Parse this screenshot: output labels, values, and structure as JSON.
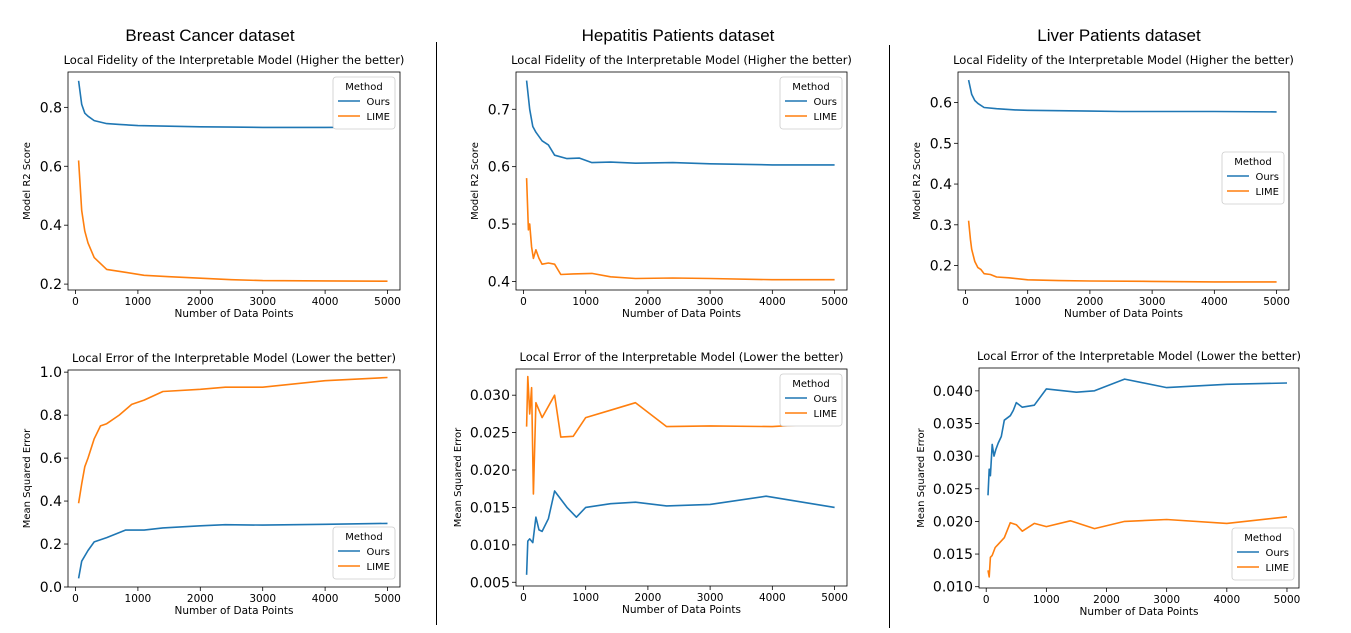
{
  "columns": [
    {
      "title": "Breast Cancer dataset",
      "charts": [
        {
          "type": "line",
          "title": "Local Fidelity of the Interpretable Model  (Higher the better)",
          "xlabel": "Number of Data Points",
          "ylabel": "Model R2 Score",
          "xlim": [
            -120,
            5200
          ],
          "ylim": [
            0.18,
            0.92
          ],
          "xticks": [
            0,
            1000,
            2000,
            3000,
            4000,
            5000
          ],
          "yticks": [
            0.2,
            0.4,
            0.6,
            0.8
          ],
          "ytick_decimals": 1,
          "legend": "top-right",
          "legend_title": "Method",
          "series": [
            {
              "name": "Ours",
              "color": "#1f77b4",
              "x": [
                50,
                100,
                150,
                200,
                300,
                500,
                700,
                1000,
                1500,
                2000,
                2500,
                3000,
                4000,
                5000
              ],
              "y": [
                0.89,
                0.81,
                0.78,
                0.77,
                0.755,
                0.745,
                0.742,
                0.738,
                0.736,
                0.734,
                0.733,
                0.732,
                0.732,
                0.733
              ]
            },
            {
              "name": "LIME",
              "color": "#ff7f0e",
              "x": [
                50,
                100,
                150,
                200,
                300,
                500,
                800,
                1100,
                1500,
                2000,
                2500,
                3000,
                4000,
                5000
              ],
              "y": [
                0.62,
                0.45,
                0.38,
                0.34,
                0.29,
                0.25,
                0.24,
                0.23,
                0.225,
                0.22,
                0.215,
                0.212,
                0.211,
                0.21
              ]
            }
          ]
        },
        {
          "type": "line",
          "title": "Local Error of the Interpretable Model  (Lower the better)",
          "xlabel": "Number of Data Points",
          "ylabel": "Mean Squared Error",
          "xlim": [
            -120,
            5200
          ],
          "ylim": [
            0.0,
            1.01
          ],
          "xticks": [
            0,
            1000,
            2000,
            3000,
            4000,
            5000
          ],
          "yticks": [
            0.0,
            0.2,
            0.4,
            0.6,
            0.8,
            1.0
          ],
          "ytick_decimals": 1,
          "legend": "bottom-right",
          "legend_title": "Method",
          "series": [
            {
              "name": "Ours",
              "color": "#1f77b4",
              "x": [
                50,
                100,
                200,
                300,
                500,
                800,
                1100,
                1400,
                2000,
                2400,
                3000,
                4000,
                5000
              ],
              "y": [
                0.04,
                0.12,
                0.17,
                0.21,
                0.23,
                0.265,
                0.265,
                0.275,
                0.285,
                0.29,
                0.288,
                0.292,
                0.296
              ]
            },
            {
              "name": "LIME",
              "color": "#ff7f0e",
              "x": [
                50,
                100,
                150,
                200,
                300,
                400,
                500,
                700,
                900,
                1100,
                1400,
                2000,
                2400,
                3000,
                4000,
                5000
              ],
              "y": [
                0.39,
                0.48,
                0.56,
                0.6,
                0.69,
                0.75,
                0.76,
                0.8,
                0.85,
                0.87,
                0.91,
                0.92,
                0.93,
                0.93,
                0.96,
                0.975
              ]
            }
          ]
        }
      ]
    },
    {
      "title": "Hepatitis Patients dataset",
      "charts": [
        {
          "type": "line",
          "title": "Local Fidelity of the Interpretable Model  (Higher the better)",
          "xlabel": "Number of Data Points",
          "ylabel": "Model R2 Score",
          "xlim": [
            -120,
            5200
          ],
          "ylim": [
            0.385,
            0.765
          ],
          "xticks": [
            0,
            1000,
            2000,
            3000,
            4000,
            5000
          ],
          "yticks": [
            0.4,
            0.5,
            0.6,
            0.7
          ],
          "ytick_decimals": 1,
          "legend": "top-right",
          "legend_title": "Method",
          "series": [
            {
              "name": "Ours",
              "color": "#1f77b4",
              "x": [
                50,
                100,
                150,
                200,
                300,
                400,
                500,
                700,
                900,
                1100,
                1400,
                1800,
                2400,
                3000,
                4000,
                5000
              ],
              "y": [
                0.75,
                0.7,
                0.67,
                0.66,
                0.645,
                0.638,
                0.62,
                0.614,
                0.615,
                0.607,
                0.608,
                0.606,
                0.607,
                0.605,
                0.603,
                0.603
              ]
            },
            {
              "name": "LIME",
              "color": "#ff7f0e",
              "x": [
                50,
                80,
                100,
                130,
                160,
                200,
                250,
                300,
                400,
                500,
                600,
                800,
                1100,
                1400,
                1800,
                2400,
                3000,
                4000,
                5000
              ],
              "y": [
                0.58,
                0.49,
                0.5,
                0.46,
                0.44,
                0.455,
                0.44,
                0.43,
                0.432,
                0.43,
                0.412,
                0.413,
                0.414,
                0.408,
                0.405,
                0.406,
                0.405,
                0.403,
                0.403
              ]
            }
          ]
        },
        {
          "type": "line",
          "title": "Local Error of the Interpretable Model  (Lower the better)",
          "xlabel": "Number of Data Points",
          "ylabel": "Mean Squared Error",
          "xlim": [
            -120,
            5200
          ],
          "ylim": [
            0.0045,
            0.0335
          ],
          "xticks": [
            0,
            1000,
            2000,
            3000,
            4000,
            5000
          ],
          "yticks": [
            0.005,
            0.01,
            0.015,
            0.02,
            0.025,
            0.03
          ],
          "ytick_decimals": 3,
          "legend": "top-right",
          "legend_title": "Method",
          "series": [
            {
              "name": "Ours",
              "color": "#1f77b4",
              "x": [
                50,
                70,
                100,
                150,
                200,
                250,
                300,
                400,
                500,
                700,
                850,
                1000,
                1400,
                1800,
                2300,
                3000,
                3900,
                5000
              ],
              "y": [
                0.006,
                0.0105,
                0.0108,
                0.0103,
                0.0137,
                0.012,
                0.0118,
                0.0135,
                0.0172,
                0.015,
                0.0137,
                0.015,
                0.0155,
                0.0157,
                0.0152,
                0.0154,
                0.0165,
                0.015
              ]
            },
            {
              "name": "LIME",
              "color": "#ff7f0e",
              "x": [
                50,
                70,
                100,
                130,
                160,
                200,
                300,
                500,
                600,
                800,
                1000,
                1400,
                1800,
                2300,
                3000,
                4000,
                5000
              ],
              "y": [
                0.0258,
                0.0325,
                0.0275,
                0.031,
                0.0168,
                0.029,
                0.027,
                0.03,
                0.0244,
                0.0245,
                0.027,
                0.028,
                0.029,
                0.0258,
                0.0259,
                0.0258,
                0.0263
              ]
            }
          ]
        }
      ]
    },
    {
      "title": "Liver Patients dataset",
      "charts": [
        {
          "type": "line",
          "title": "Local Fidelity of the Interpretable Model  (Higher the better)",
          "xlabel": "Number of Data Points",
          "ylabel": "Model R2 Score",
          "xlim": [
            -120,
            5200
          ],
          "ylim": [
            0.14,
            0.675
          ],
          "xticks": [
            0,
            1000,
            2000,
            3000,
            4000,
            5000
          ],
          "yticks": [
            0.2,
            0.3,
            0.4,
            0.5,
            0.6
          ],
          "ytick_decimals": 1,
          "legend": "center-right",
          "legend_title": "Method",
          "series": [
            {
              "name": "Ours",
              "color": "#1f77b4",
              "x": [
                50,
                100,
                150,
                200,
                300,
                500,
                800,
                1000,
                1500,
                2000,
                2500,
                3000,
                4000,
                5000
              ],
              "y": [
                0.655,
                0.62,
                0.605,
                0.598,
                0.588,
                0.585,
                0.582,
                0.581,
                0.58,
                0.579,
                0.578,
                0.578,
                0.578,
                0.577
              ]
            },
            {
              "name": "LIME",
              "color": "#ff7f0e",
              "x": [
                50,
                80,
                100,
                150,
                200,
                250,
                300,
                400,
                500,
                700,
                1000,
                1500,
                2000,
                3000,
                4000,
                5000
              ],
              "y": [
                0.31,
                0.265,
                0.24,
                0.21,
                0.195,
                0.19,
                0.18,
                0.178,
                0.172,
                0.17,
                0.165,
                0.163,
                0.162,
                0.161,
                0.16,
                0.16
              ]
            }
          ]
        },
        {
          "type": "line",
          "title": "Local Error of the Interpretable Model  (Lower the better)",
          "xlabel": "Number of Data Points",
          "ylabel": "Mean Squared Error",
          "xlim": [
            -120,
            5200
          ],
          "ylim": [
            0.0098,
            0.0435
          ],
          "xticks": [
            0,
            1000,
            2000,
            3000,
            4000,
            5000
          ],
          "yticks": [
            0.01,
            0.015,
            0.02,
            0.025,
            0.03,
            0.035,
            0.04
          ],
          "ytick_decimals": 3,
          "legend": "bottom-right",
          "legend_title": "Method",
          "series": [
            {
              "name": "Ours",
              "color": "#1f77b4",
              "x": [
                30,
                50,
                70,
                100,
                130,
                160,
                200,
                250,
                300,
                400,
                450,
                500,
                600,
                800,
                1000,
                1500,
                1800,
                2300,
                3000,
                4000,
                5000
              ],
              "y": [
                0.024,
                0.028,
                0.027,
                0.0318,
                0.03,
                0.031,
                0.032,
                0.033,
                0.0355,
                0.0362,
                0.037,
                0.0382,
                0.0375,
                0.0378,
                0.0403,
                0.0398,
                0.04,
                0.0418,
                0.0405,
                0.041,
                0.0412
              ]
            },
            {
              "name": "LIME",
              "color": "#ff7f0e",
              "x": [
                30,
                50,
                70,
                100,
                150,
                200,
                300,
                400,
                500,
                600,
                800,
                1000,
                1400,
                1800,
                2300,
                3000,
                4000,
                5000
              ],
              "y": [
                0.0125,
                0.0115,
                0.0145,
                0.0148,
                0.016,
                0.0165,
                0.0175,
                0.0198,
                0.0195,
                0.0185,
                0.0197,
                0.0192,
                0.0201,
                0.0189,
                0.02,
                0.0203,
                0.0197,
                0.0207
              ]
            }
          ]
        }
      ]
    }
  ]
}
